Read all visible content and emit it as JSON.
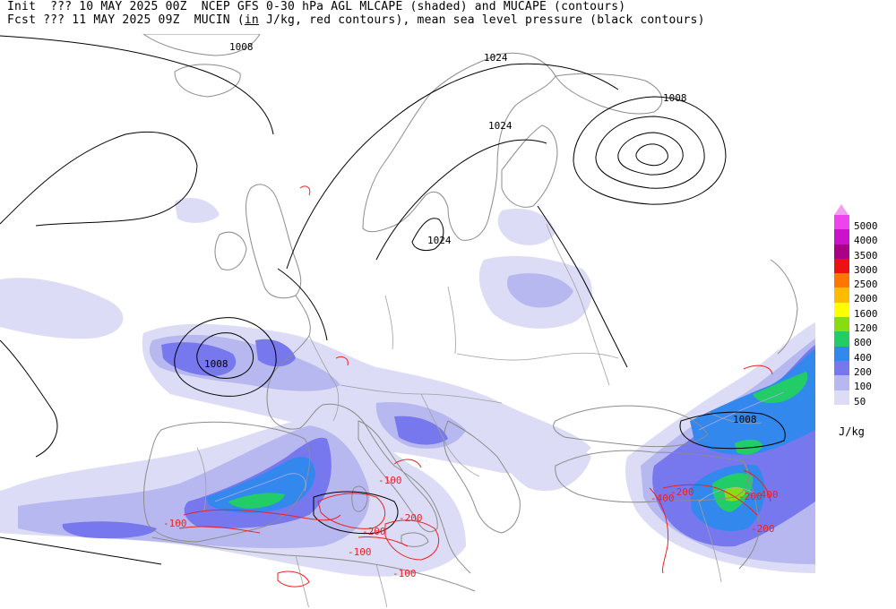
{
  "header": {
    "line1_init": "Init  ??? 10 MAY 2025 00Z",
    "line1_title": "NCEP GFS 0-30 hPa AGL MLCAPE (shaded) and MUCAPE (contours)",
    "line2_fcst": "Fcst ??? 11 MAY 2025 09Z",
    "line2_pre": "MUCIN (",
    "line2_in": "in",
    "line2_post": " J/kg, red contours), mean sea level pressure (black contours)"
  },
  "legend": {
    "units": "J/kg",
    "levels": [
      {
        "label": "5000",
        "color": "#ee44ee"
      },
      {
        "label": "4000",
        "color": "#cc11cc"
      },
      {
        "label": "3500",
        "color": "#aa0088"
      },
      {
        "label": "3000",
        "color": "#ee1111"
      },
      {
        "label": "2500",
        "color": "#ff7700"
      },
      {
        "label": "2000",
        "color": "#ffbb00"
      },
      {
        "label": "1600",
        "color": "#ffff00"
      },
      {
        "label": "1200",
        "color": "#88dd11"
      },
      {
        "label": "800",
        "color": "#22cc66"
      },
      {
        "label": "400",
        "color": "#3388ee"
      },
      {
        "label": "200",
        "color": "#7777ee"
      },
      {
        "label": "100",
        "color": "#b8b8f0"
      },
      {
        "label": "50",
        "color": "#dcdcf6"
      }
    ]
  },
  "map": {
    "colors": {
      "coast": "#8c8c8c",
      "border": "#a0a0a0",
      "isobar": "#000000",
      "cin": "#ee2222",
      "cape_contour": "#aaaaee"
    },
    "isobar_labels": [
      "1008",
      "1024",
      "1024",
      "1008",
      "1024",
      "1008",
      "1008"
    ],
    "cin_labels": [
      "-100",
      "-100",
      "-200",
      "-200",
      "-100",
      "-100",
      "-200",
      "-400",
      "-200",
      "-400",
      "-200"
    ]
  }
}
